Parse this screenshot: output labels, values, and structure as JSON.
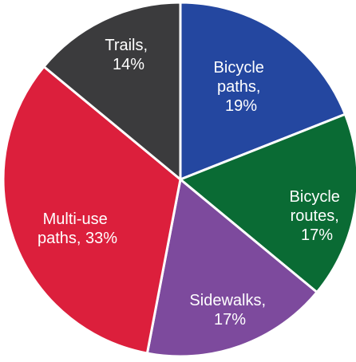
{
  "chart_data": {
    "type": "pie",
    "categories": [
      "Bicycle paths",
      "Bicycle routes",
      "Sidewalks",
      "Multi-use paths",
      "Trails"
    ],
    "values": [
      19,
      17,
      17,
      33,
      14
    ],
    "value_labels": [
      "Bicycle paths, 19%",
      "Bicycle routes, 17%",
      "Sidewalks, 17%",
      "Multi-use paths, 33%",
      "Trails, 14%"
    ],
    "colors": [
      "#2447a0",
      "#0a6b34",
      "#7d4a9d",
      "#dc1f3c",
      "#3b3b3d"
    ]
  }
}
